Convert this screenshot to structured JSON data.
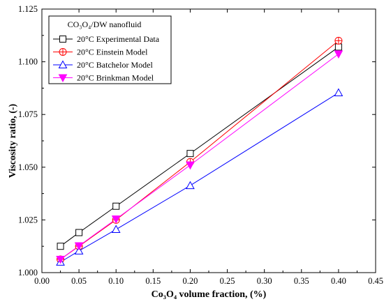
{
  "chart_data": {
    "type": "line",
    "x": [
      0.025,
      0.05,
      0.1,
      0.2,
      0.4
    ],
    "xlim": [
      0.0,
      0.45
    ],
    "ylim": [
      1.0,
      1.125
    ],
    "xticks": [
      "0.00",
      "0.05",
      "0.10",
      "0.15",
      "0.20",
      "0.25",
      "0.30",
      "0.35",
      "0.40",
      "0.45"
    ],
    "yticks": [
      "1.000",
      "1.025",
      "1.050",
      "1.075",
      "1.100",
      "1.125"
    ],
    "xlabel": "Co₃O₄ volume fraction, (%)",
    "ylabel": "Viscosity ratio, (-)",
    "legend_title": "CO₃O₄/DW nanofluid",
    "legend_position": "top-left",
    "grid": false,
    "series": [
      {
        "name": "20°C Experimental Data",
        "color": "#000000",
        "marker": "square",
        "values": [
          1.0125,
          1.019,
          1.0315,
          1.0565,
          1.107
        ]
      },
      {
        "name": "20°C Einstein Model",
        "color": "#ff0000",
        "marker": "circle-plus",
        "values": [
          1.0063,
          1.0125,
          1.025,
          1.0525,
          1.11
        ]
      },
      {
        "name": "20°C Batchelor Model",
        "color": "#0000ff",
        "marker": "triangle-up",
        "values": [
          1.005,
          1.0103,
          1.0205,
          1.0413,
          1.0853
        ]
      },
      {
        "name": "20°C Brinkman Model",
        "color": "#ff00ff",
        "marker": "triangle-down-filled",
        "values": [
          1.0063,
          1.0127,
          1.0254,
          1.051,
          1.1037
        ]
      }
    ]
  }
}
